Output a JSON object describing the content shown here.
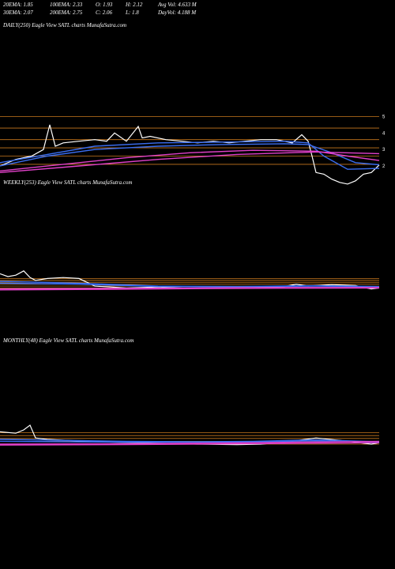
{
  "stats": [
    {
      "label": "20EMA:",
      "value": "1.85"
    },
    {
      "label": "100EMA:",
      "value": "2.33"
    },
    {
      "label": "O:",
      "value": "1.93"
    },
    {
      "label": "H:",
      "value": "2.12"
    },
    {
      "label": "Avg Vol:",
      "value": "4.633 M"
    },
    {
      "label": "30EMA:",
      "value": "2.07"
    },
    {
      "label": "200EMA:",
      "value": "2.75"
    },
    {
      "label": "C:",
      "value": "2.06"
    },
    {
      "label": "L:",
      "value": "1.8"
    },
    {
      "label": "DayVol:",
      "value": "4.188 M"
    }
  ],
  "colors": {
    "background": "#000000",
    "price": "#ffffff",
    "ema_short": "#3a6df0",
    "ema_long": "#e040c8",
    "level": "#c8781e"
  },
  "chart_data": [
    {
      "type": "line",
      "title": "DAILY(250) Eagle  View  SATL  charts MunafaSutra.com",
      "ylim": [
        0.8,
        5.6
      ],
      "y_ticks": [
        5,
        4,
        3,
        2
      ],
      "levels": [
        5,
        4.3,
        3.6,
        3.1,
        2.6,
        2.1
      ],
      "series": [
        {
          "role": "price",
          "x": [
            0,
            20,
            40,
            55,
            63,
            70,
            80,
            100,
            120,
            135,
            145,
            160,
            175,
            180,
            190,
            210,
            230,
            250,
            270,
            290,
            310,
            330,
            350,
            370,
            382,
            390,
            395,
            400,
            410,
            420,
            430,
            440,
            450,
            460,
            470,
            480
          ],
          "values": [
            2.0,
            2.4,
            2.6,
            3.0,
            4.5,
            3.2,
            3.4,
            3.5,
            3.6,
            3.5,
            4.0,
            3.5,
            4.4,
            3.7,
            3.8,
            3.6,
            3.5,
            3.4,
            3.5,
            3.4,
            3.5,
            3.6,
            3.6,
            3.4,
            3.9,
            3.5,
            2.6,
            1.6,
            1.5,
            1.2,
            1.0,
            0.9,
            1.1,
            1.5,
            1.6,
            2.06
          ]
        },
        {
          "role": "ema_short",
          "x": [
            0,
            60,
            120,
            200,
            280,
            360,
            390,
            410,
            440,
            480
          ],
          "values": [
            2.2,
            2.7,
            3.2,
            3.4,
            3.45,
            3.5,
            3.4,
            2.6,
            1.8,
            1.85
          ]
        },
        {
          "role": "ema_short",
          "x": [
            0,
            60,
            120,
            200,
            280,
            360,
            390,
            420,
            450,
            480
          ],
          "values": [
            2.0,
            2.6,
            3.0,
            3.2,
            3.3,
            3.35,
            3.3,
            2.8,
            2.2,
            2.07
          ]
        },
        {
          "role": "ema_long",
          "x": [
            0,
            80,
            160,
            240,
            320,
            400,
            440,
            480
          ],
          "values": [
            1.7,
            2.1,
            2.5,
            2.8,
            2.95,
            2.9,
            2.6,
            2.33
          ]
        },
        {
          "role": "ema_long",
          "x": [
            0,
            100,
            200,
            300,
            400,
            480
          ],
          "values": [
            1.6,
            2.0,
            2.4,
            2.7,
            2.85,
            2.75
          ]
        }
      ]
    },
    {
      "type": "line",
      "title": "WEEKLY(253) Eagle  View  SATL  charts MunafaSutra.com",
      "ylim": [
        0,
        10
      ],
      "y_ticks": [],
      "levels": [
        4.6,
        4.2,
        3.8,
        3.4,
        3.0,
        2.6
      ],
      "series": [
        {
          "role": "price",
          "x": [
            0,
            10,
            20,
            30,
            38,
            45,
            60,
            80,
            100,
            110,
            120,
            160,
            200,
            240,
            280,
            320,
            360,
            375,
            390,
            420,
            450,
            470,
            480
          ],
          "values": [
            5.6,
            5.0,
            5.3,
            6.2,
            4.8,
            4.2,
            4.6,
            4.8,
            4.6,
            3.8,
            3.0,
            2.6,
            2.8,
            2.5,
            2.6,
            2.7,
            2.9,
            3.4,
            3.0,
            3.3,
            3.1,
            2.4,
            2.6
          ]
        },
        {
          "role": "ema_short",
          "x": [
            0,
            100,
            200,
            300,
            400,
            480
          ],
          "values": [
            4.0,
            3.6,
            3.0,
            2.9,
            3.1,
            2.9
          ]
        },
        {
          "role": "ema_short",
          "x": [
            0,
            100,
            200,
            300,
            400,
            480
          ],
          "values": [
            3.6,
            3.4,
            2.9,
            2.85,
            3.0,
            2.85
          ]
        },
        {
          "role": "ema_long",
          "x": [
            0,
            120,
            240,
            360,
            480
          ],
          "values": [
            2.4,
            2.5,
            2.6,
            2.7,
            2.7
          ]
        },
        {
          "role": "ema_long",
          "x": [
            0,
            120,
            240,
            360,
            480
          ],
          "values": [
            2.2,
            2.3,
            2.45,
            2.55,
            2.6
          ]
        }
      ]
    },
    {
      "type": "line",
      "title": "MONTHLY(48) Eagle  View  SATL  charts MunafaSutra.com",
      "ylim": [
        0,
        10
      ],
      "y_ticks": [],
      "levels": [
        5.4,
        4.8,
        4.2,
        3.6,
        3.0
      ],
      "series": [
        {
          "role": "price",
          "x": [
            0,
            20,
            30,
            38,
            45,
            60,
            120,
            200,
            250,
            300,
            330,
            360,
            400,
            430,
            460,
            470,
            480
          ],
          "values": [
            5.6,
            5.3,
            6.0,
            7.0,
            4.3,
            4.0,
            3.5,
            3.2,
            3.0,
            2.9,
            3.0,
            3.4,
            4.3,
            3.8,
            3.2,
            3.0,
            3.3
          ]
        },
        {
          "role": "ema_short",
          "x": [
            0,
            80,
            160,
            240,
            320,
            400,
            480
          ],
          "values": [
            4.0,
            3.8,
            3.6,
            3.5,
            3.6,
            3.9,
            3.5
          ]
        },
        {
          "role": "ema_short",
          "x": [
            0,
            80,
            160,
            240,
            320,
            400,
            480
          ],
          "values": [
            3.6,
            3.5,
            3.4,
            3.4,
            3.5,
            3.7,
            3.4
          ]
        },
        {
          "role": "ema_long",
          "x": [
            0,
            160,
            320,
            480
          ],
          "values": [
            3.0,
            3.1,
            3.3,
            3.6
          ]
        },
        {
          "role": "ema_long",
          "x": [
            0,
            160,
            320,
            480
          ],
          "values": [
            2.8,
            2.9,
            3.1,
            3.3
          ]
        }
      ]
    }
  ]
}
